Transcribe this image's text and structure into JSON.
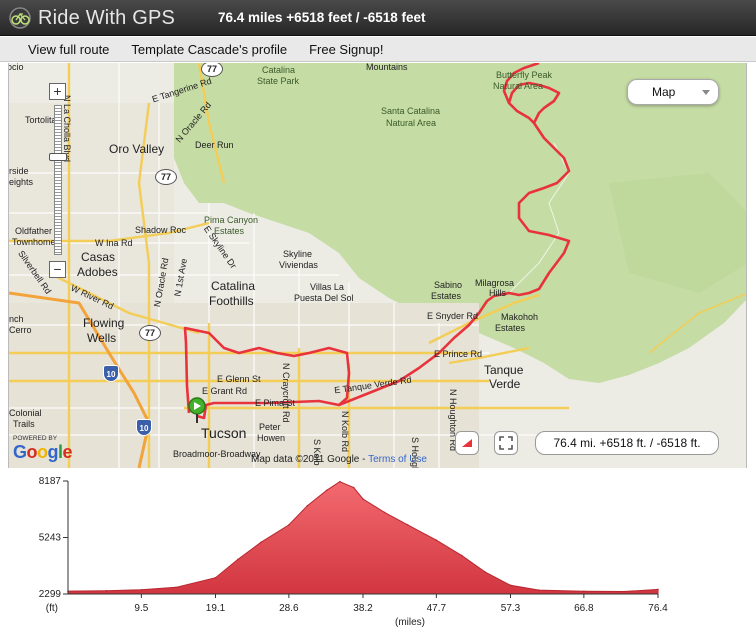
{
  "header": {
    "app_name": "Ride With GPS",
    "route_title": "76.4 miles +6518 feet / -6518 feet"
  },
  "nav": {
    "items": [
      "View full route",
      "Template Cascade's profile",
      "Free Signup!"
    ]
  },
  "map": {
    "type_selector": "Map",
    "summary": "76.4 mi. +6518 ft. / -6518 ft.",
    "attribution": "Map data ©2011 Google",
    "terms": "Terms of Use",
    "powered_by": "POWERED BY",
    "google": "Google",
    "zoom_in": "+",
    "zoom_out": "−",
    "labels": {
      "mountains": "Mountains",
      "catalina_park_1": "Catalina",
      "catalina_park_2": "State Park",
      "butterfly_1": "Butterfly Peak",
      "butterfly_2": "Natural Area",
      "santa_1": "Santa Catalina",
      "santa_2": "Natural Area",
      "tangerine": "E Tangerine Rd",
      "oracle_n": "N Oracle Rd",
      "la_cholla": "N La Cholla Blvd",
      "tortolita": "Tortolita",
      "oro_valley": "Oro Valley",
      "deer_run": "Deer Run",
      "oldfather": "Oldfather",
      "townhomes": "Townhomes",
      "lakeside": "rside",
      "heights": "eights",
      "shadow_roc": "Shadow Roc",
      "pima_canyon_1": "Pima Canyon",
      "pima_canyon_2": "Estates",
      "ina": "W Ina Rd",
      "casas_1": "Casas",
      "casas_2": "Adobes",
      "skyline": "E Skyline Dr",
      "skyline_v_1": "Skyline",
      "skyline_v_2": "Viviendas",
      "villas_1": "Villas La",
      "villas_2": "Puesta Del Sol",
      "catalina_f_1": "Catalina",
      "catalina_f_2": "Foothills",
      "river": "W River Rd",
      "silverbell": "Silverbell Rd",
      "first_ave": "N 1st Ave",
      "oracle_s": "N Oracle Rd",
      "flowing_1": "Flowing",
      "flowing_2": "Wells",
      "cerro": "Cerro",
      "nch": "nch",
      "sabino_1": "Sabino",
      "sabino_2": "Estates",
      "milagrosa": "Milagrosa",
      "hills": "Hills",
      "snyder": "E Snyder Rd",
      "makohoh_1": "Makohoh",
      "makohoh_2": "Estates",
      "prince": "E Prince Rd",
      "tanque_1": "Tanque",
      "tanque_2": "Verde",
      "tanque_rd": "E Tanque Verde Rd",
      "glenn": "E Glenn St",
      "grant": "E Grant Rd",
      "craycroft": "N Craycroft Rd",
      "pima": "E Pima St",
      "kolb": "N Kolb Rd",
      "houghton": "N Houghton Rd",
      "colonial_1": "Colonial",
      "colonial_2": "Trails",
      "tucson": "Tucson",
      "peter_1": "Peter",
      "peter_2": "Howen",
      "broadmoor": "Broadmoor-Broadway",
      "s_houghton": "S Houghton Rd",
      "s_kolb": "S Kolb Rd",
      "ocio": "ocio"
    },
    "shields": {
      "i10": "10",
      "r77a": "77",
      "r77b": "77",
      "r77c": "77",
      "i10b": "10"
    }
  },
  "elevation": {
    "y_ticks": [
      "8187",
      "5243",
      "2299"
    ],
    "y_unit": "(ft)",
    "x_ticks": [
      "9.5",
      "19.1",
      "28.6",
      "38.2",
      "47.7",
      "57.3",
      "66.8",
      "76.4"
    ],
    "x_unit": "(miles)"
  },
  "chart_data": {
    "type": "area",
    "title": "",
    "xlabel": "(miles)",
    "ylabel": "(ft)",
    "xlim": [
      0,
      76.4
    ],
    "ylim": [
      2299,
      8187
    ],
    "x": [
      0,
      5,
      9.5,
      14,
      19.1,
      22,
      25,
      28.6,
      31,
      33.5,
      35.2,
      37,
      38.2,
      41,
      44,
      47.7,
      51,
      54,
      57.3,
      61,
      66.8,
      72,
      76.4
    ],
    "series": [
      {
        "values": [
          2450,
          2470,
          2520,
          2650,
          3150,
          4100,
          5000,
          5900,
          6900,
          7700,
          8150,
          7850,
          7250,
          6550,
          5900,
          5100,
          4300,
          3450,
          2750,
          2500,
          2440,
          2430,
          2540
        ]
      }
    ],
    "color": "#e8474e"
  }
}
